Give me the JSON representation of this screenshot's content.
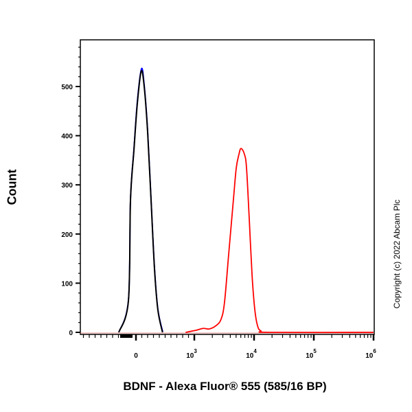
{
  "chart_data": {
    "type": "line",
    "title": "",
    "xlabel": "BDNF - Alexa Fluor® 555 (585/16 BP)",
    "ylabel": "Count",
    "x_scale": "biexponential",
    "ylim": [
      0,
      595
    ],
    "xlim": [
      -950,
      1000000
    ],
    "grid": false,
    "y_ticks": [
      "0",
      "100",
      "200",
      "300",
      "400",
      "500"
    ],
    "x_ticks": [
      {
        "value": 0,
        "base": "0",
        "exp": ""
      },
      {
        "value": 1000,
        "base": "10",
        "exp": "3"
      },
      {
        "value": 10000,
        "base": "10",
        "exp": "4"
      },
      {
        "value": 100000,
        "base": "10",
        "exp": "5"
      },
      {
        "value": 1000000,
        "base": "10",
        "exp": "6"
      }
    ],
    "series": [
      {
        "color": "#0000ff",
        "x": [
          -294,
          -129,
          -94,
          -35,
          24,
          94,
          141,
          200,
          259,
          318,
          376,
          459
        ],
        "y": [
          0,
          66,
          271,
          373,
          471,
          536,
          504,
          411,
          271,
          131,
          47,
          1
        ]
      },
      {
        "color": "#000000",
        "x": [
          -294,
          -129,
          -94,
          -35,
          24,
          90,
          141,
          200,
          259,
          318,
          376,
          455
        ],
        "y": [
          0,
          64,
          268,
          370,
          466,
          531,
          500,
          407,
          268,
          128,
          45,
          0
        ]
      },
      {
        "color": "#ff0000",
        "x": [
          850,
          1050,
          1410,
          1790,
          2330,
          2810,
          3200,
          3760,
          4520,
          5030,
          5580,
          6050,
          6910,
          7480,
          8320,
          9250,
          10270,
          11400,
          13000,
          18400,
          1000000
        ],
        "y": [
          0,
          4,
          8,
          7,
          14,
          27,
          61,
          159,
          271,
          334,
          362,
          374,
          362,
          334,
          229,
          117,
          47,
          14,
          3,
          0,
          0
        ]
      }
    ]
  },
  "watermark": "Copyright (c) 2022 Abcam Plc"
}
